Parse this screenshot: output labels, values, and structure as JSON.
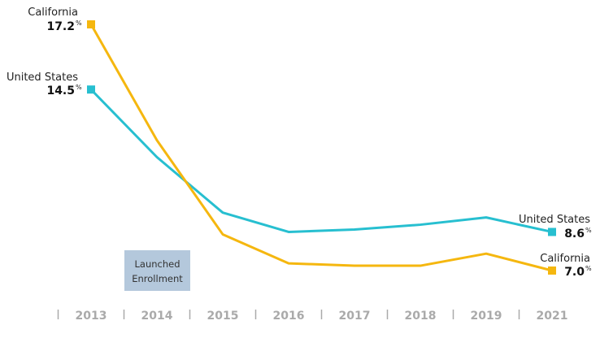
{
  "chart_data": {
    "type": "line",
    "title": "",
    "xlabel": "",
    "ylabel": "",
    "categories": [
      "2013",
      "2014",
      "2015",
      "2016",
      "2017",
      "2018",
      "2019",
      "2021"
    ],
    "ylim": [
      7.0,
      17.2
    ],
    "grid": false,
    "series": [
      {
        "name": "California",
        "color": "#f5b70f",
        "values": [
          17.2,
          12.4,
          8.5,
          7.3,
          7.2,
          7.2,
          7.7,
          7.0
        ],
        "start_label": "California",
        "start_value": "17.2",
        "end_label": "California",
        "end_value": "7.0"
      },
      {
        "name": "United States",
        "color": "#27bfd0",
        "values": [
          14.5,
          11.7,
          9.4,
          8.6,
          8.7,
          8.9,
          9.2,
          8.6
        ],
        "start_label": "United States",
        "start_value": "14.5",
        "end_label": "United States",
        "end_value": "8.6"
      }
    ],
    "percent_sign": "%",
    "annotation": {
      "line1": "Launched",
      "line2": "Enrollment",
      "category": "2014",
      "color": "#b4c8dc"
    }
  }
}
